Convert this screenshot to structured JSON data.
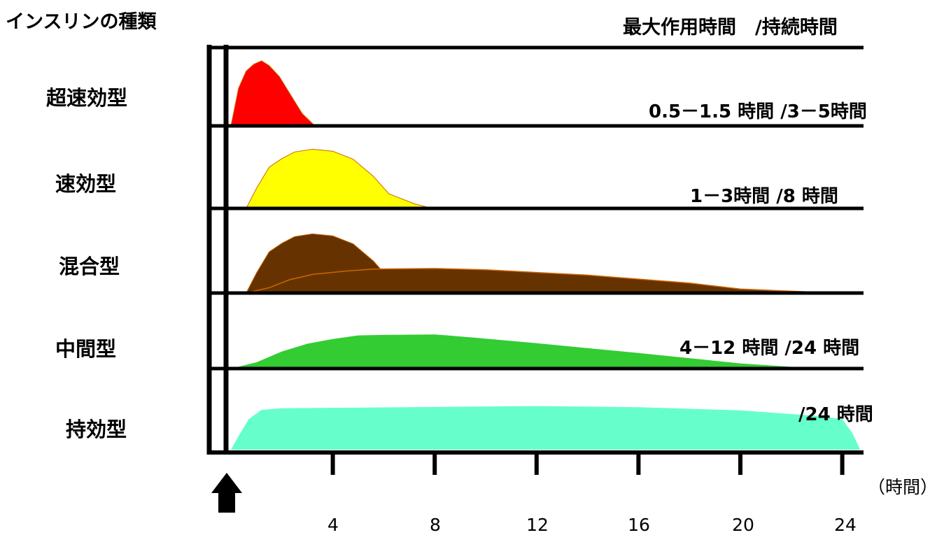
{
  "title": "インスリンの種類",
  "header": "最大作用時間　/持続時間",
  "x_unit": "（時間）",
  "colors": {
    "ultra_rapid": "#ff0000",
    "rapid": "#ffff00",
    "mixed": "#663300",
    "intermediate": "#33cc33",
    "long_acting": "#66ffcc",
    "curve_outline": "#cc6600",
    "axis": "#000000"
  },
  "chart_data": {
    "type": "area",
    "title": "インスリンの種類",
    "xlabel": "（時間）",
    "ylabel": "",
    "x_ticks": [
      4,
      8,
      12,
      16,
      20,
      24
    ],
    "xlim": [
      -1.5,
      24.5
    ],
    "injection_marker": "up-arrow at time 0",
    "grid": false,
    "series": [
      {
        "name": "超速効型",
        "label": "0.5－1.5 時間 /3－5時間",
        "color": "#ff0000",
        "points": [
          [
            0,
            0
          ],
          [
            0.3,
            0.55
          ],
          [
            0.6,
            0.8
          ],
          [
            0.9,
            0.9
          ],
          [
            1.2,
            0.95
          ],
          [
            1.5,
            0.88
          ],
          [
            1.9,
            0.72
          ],
          [
            2.3,
            0.48
          ],
          [
            2.8,
            0.18
          ],
          [
            3.3,
            0
          ]
        ]
      },
      {
        "name": "速効型",
        "label": "1－3時間 /8 時間",
        "color": "#ffff00",
        "points": [
          [
            0.6,
            0
          ],
          [
            1,
            0.3
          ],
          [
            1.5,
            0.62
          ],
          [
            2,
            0.75
          ],
          [
            2.5,
            0.85
          ],
          [
            3.2,
            0.89
          ],
          [
            4,
            0.86
          ],
          [
            4.8,
            0.74
          ],
          [
            5.6,
            0.48
          ],
          [
            6.2,
            0.22
          ],
          [
            7.2,
            0.07
          ],
          [
            7.9,
            0
          ]
        ]
      },
      {
        "name": "混合型",
        "label": "",
        "color": "#663300",
        "points": [
          [
            0.6,
            0
          ],
          [
            1,
            0.3
          ],
          [
            1.5,
            0.62
          ],
          [
            2,
            0.75
          ],
          [
            2.5,
            0.85
          ],
          [
            3.2,
            0.89
          ],
          [
            4,
            0.86
          ],
          [
            4.8,
            0.74
          ],
          [
            5.6,
            0.48
          ],
          [
            6.2,
            0.22
          ],
          [
            7.2,
            0.07
          ],
          [
            7.9,
            0
          ]
        ],
        "second_curve": [
          [
            0.6,
            0
          ],
          [
            1.5,
            0.08
          ],
          [
            2.3,
            0.2
          ],
          [
            3.2,
            0.28
          ],
          [
            4.5,
            0.33
          ],
          [
            5.6,
            0.36
          ],
          [
            8,
            0.37
          ],
          [
            10,
            0.35
          ],
          [
            14,
            0.27
          ],
          [
            18,
            0.15
          ],
          [
            20,
            0.06
          ],
          [
            22.5,
            0.02
          ],
          [
            23.2,
            0
          ]
        ]
      },
      {
        "name": "中間型",
        "label": "4－12 時間 /24 時間",
        "color": "#33cc33",
        "points": [
          [
            0,
            0
          ],
          [
            1,
            0.12
          ],
          [
            2,
            0.33
          ],
          [
            3,
            0.48
          ],
          [
            4,
            0.57
          ],
          [
            5,
            0.64
          ],
          [
            6,
            0.65
          ],
          [
            8,
            0.66
          ],
          [
            9.5,
            0.6
          ],
          [
            12,
            0.49
          ],
          [
            16,
            0.3
          ],
          [
            20,
            0.1
          ],
          [
            23,
            0
          ]
        ]
      },
      {
        "name": "持効型",
        "label": "/24 時間",
        "color": "#66ffcc",
        "points": [
          [
            0,
            0
          ],
          [
            0.3,
            0.25
          ],
          [
            0.7,
            0.56
          ],
          [
            1.2,
            0.73
          ],
          [
            2,
            0.76
          ],
          [
            5,
            0.77
          ],
          [
            12,
            0.8
          ],
          [
            16,
            0.78
          ],
          [
            20,
            0.72
          ],
          [
            23,
            0.62
          ],
          [
            24,
            0.56
          ],
          [
            24.4,
            0.3
          ],
          [
            24.7,
            0
          ]
        ]
      }
    ]
  }
}
